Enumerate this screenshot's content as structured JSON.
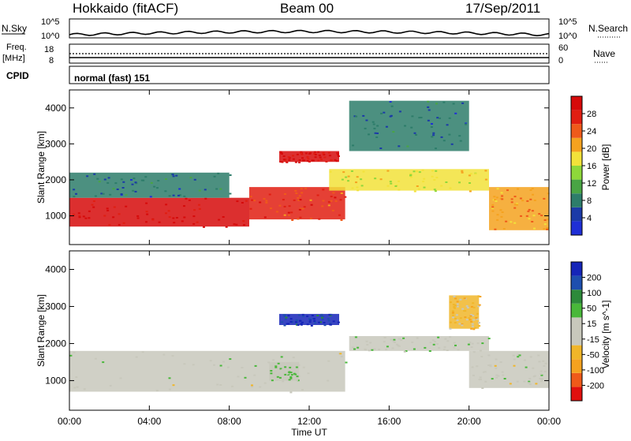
{
  "header": {
    "title_left": "Hokkaido (fitACF)",
    "title_center": "Beam 00",
    "title_right": "17/Sep/2011"
  },
  "summary": {
    "nsky_label": "N.Sky",
    "nsky_top": "10^5",
    "nsky_bottom": "10^0",
    "nsearch_label": "N.Search",
    "nsearch_top": "10^5",
    "nsearch_bottom": "10^0",
    "freq_label_1": "Freq.",
    "freq_label_2": "[MHz]",
    "freq_top": "18",
    "freq_bottom": "8",
    "nave_label": "Nave",
    "nave_top": "60",
    "nave_bottom": "0",
    "cpid_label": "CPID",
    "cpid_value": "normal (fast) 151"
  },
  "colors": {
    "power_scale": [
      "#1f2fd6",
      "#1b3aa8",
      "#2d7d6a",
      "#49a544",
      "#8ed83a",
      "#f2e23a",
      "#f5a21f",
      "#ef5a1a",
      "#e01e12",
      "#d60a0a"
    ],
    "velocity_scale": [
      "#e0100e",
      "#ef5a1a",
      "#f5a21f",
      "#f0b62a",
      "#c8c8bc",
      "#c8c8bc",
      "#49b83a",
      "#2d8a3a",
      "#1e4fae",
      "#1525b8"
    ]
  },
  "chart_data": [
    {
      "type": "heatmap",
      "name": "power",
      "ylabel": "Slant Range [km]",
      "y_ticks": [
        "1000",
        "2000",
        "3000",
        "4000"
      ],
      "ylim": [
        200,
        4500
      ],
      "x_ticks": [
        "00:00",
        "04:00",
        "08:00",
        "12:00",
        "16:00",
        "20:00",
        "00:00"
      ],
      "xlim": [
        0,
        24
      ],
      "colorbar_label": "Power [dB]",
      "colorbar_ticks": [
        "4",
        "8",
        "12",
        "16",
        "20",
        "24",
        "28"
      ],
      "colorbar_range": [
        0,
        30
      ],
      "regions": [
        {
          "t0": 0,
          "t1": 9,
          "r0": 700,
          "r1": 1500,
          "value": 28
        },
        {
          "t0": 9,
          "t1": 13.8,
          "r0": 900,
          "r1": 1800,
          "value": 24
        },
        {
          "t0": 10.5,
          "t1": 13.5,
          "r0": 2500,
          "r1": 2800,
          "value": 28
        },
        {
          "t0": 13,
          "t1": 21,
          "r0": 1700,
          "r1": 2300,
          "value": 16
        },
        {
          "t0": 0,
          "t1": 8,
          "r0": 1500,
          "r1": 2200,
          "value": 6
        },
        {
          "t0": 14,
          "t1": 20,
          "r0": 2800,
          "r1": 4200,
          "value": 6
        },
        {
          "t0": 21,
          "t1": 24,
          "r0": 600,
          "r1": 1800,
          "value": 20
        }
      ]
    },
    {
      "type": "heatmap",
      "name": "velocity",
      "ylabel": "Slant Range [km]",
      "y_ticks": [
        "1000",
        "2000",
        "3000",
        "4000"
      ],
      "ylim": [
        200,
        4500
      ],
      "x_ticks": [
        "00:00",
        "04:00",
        "08:00",
        "12:00",
        "16:00",
        "20:00",
        "00:00"
      ],
      "xlim": [
        0,
        24
      ],
      "xlabel": "Time UT",
      "colorbar_label": "Velocity [m s^-1]",
      "colorbar_ticks": [
        "-200",
        "-100",
        "-50",
        "-15",
        "15",
        "50",
        "100",
        "200"
      ],
      "colorbar_range": [
        -250,
        250
      ],
      "regions": [
        {
          "t0": 0,
          "t1": 13.8,
          "r0": 700,
          "r1": 1800,
          "value": 0
        },
        {
          "t0": 10.5,
          "t1": 13.5,
          "r0": 2500,
          "r1": 2800,
          "value": 200
        },
        {
          "t0": 10,
          "t1": 11.5,
          "r0": 1000,
          "r1": 1500,
          "value": 40
        },
        {
          "t0": 14,
          "t1": 21,
          "r0": 1800,
          "r1": 2200,
          "value": 40
        },
        {
          "t0": 20,
          "t1": 24,
          "r0": 800,
          "r1": 1800,
          "value": 0
        },
        {
          "t0": 19,
          "t1": 20.5,
          "r0": 2400,
          "r1": 3300,
          "value": -60
        }
      ]
    }
  ]
}
